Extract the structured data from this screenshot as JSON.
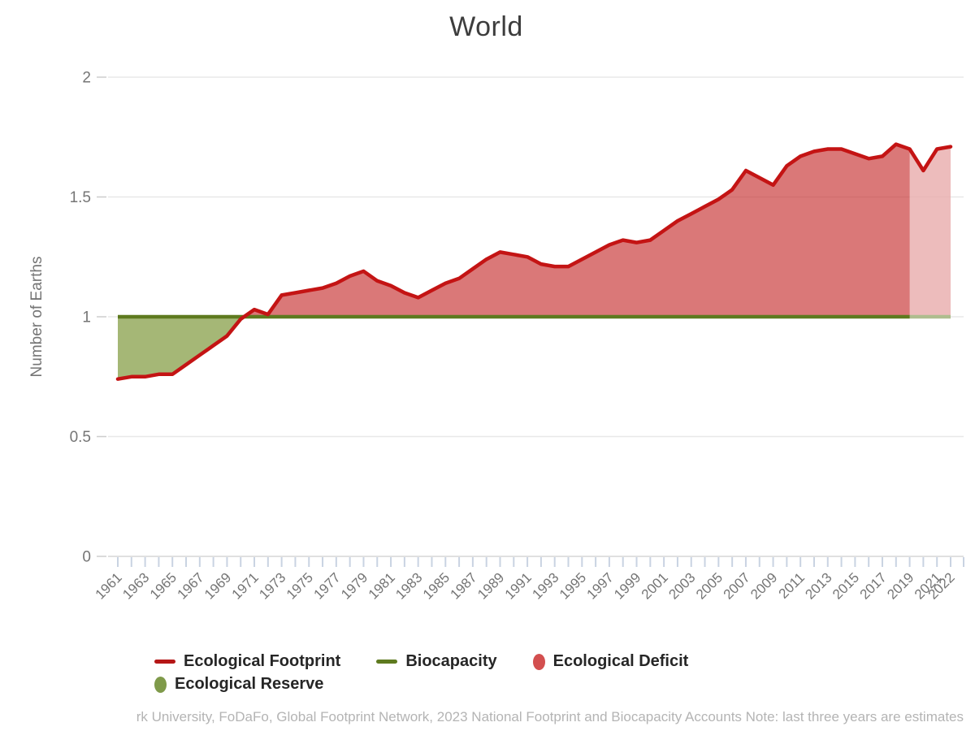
{
  "chart_data": {
    "type": "area",
    "title": "World",
    "ylabel": "Number of Earths",
    "ylim": [
      0,
      2
    ],
    "yticks": [
      0,
      0.5,
      1,
      1.5,
      2
    ],
    "ytick_labels": [
      "0",
      "0.5",
      "1",
      "1.5",
      "2"
    ],
    "x_tick_labels": [
      "1961",
      "1963",
      "1965",
      "1967",
      "1969",
      "1971",
      "1973",
      "1975",
      "1977",
      "1979",
      "1981",
      "1983",
      "1985",
      "1987",
      "1989",
      "1991",
      "1993",
      "1995",
      "1997",
      "1999",
      "2001",
      "2003",
      "2005",
      "2007",
      "2009",
      "2011",
      "2013",
      "2015",
      "2017",
      "2019",
      "2021",
      "2022"
    ],
    "grid": true,
    "legend_position": "bottom",
    "estimate_band_start_year": 2019,
    "years": [
      1961,
      1962,
      1963,
      1964,
      1965,
      1966,
      1967,
      1968,
      1969,
      1970,
      1971,
      1972,
      1973,
      1974,
      1975,
      1976,
      1977,
      1978,
      1979,
      1980,
      1981,
      1982,
      1983,
      1984,
      1985,
      1986,
      1987,
      1988,
      1989,
      1990,
      1991,
      1992,
      1993,
      1994,
      1995,
      1996,
      1997,
      1998,
      1999,
      2000,
      2001,
      2002,
      2003,
      2004,
      2005,
      2006,
      2007,
      2008,
      2009,
      2010,
      2011,
      2012,
      2013,
      2014,
      2015,
      2016,
      2017,
      2018,
      2019,
      2020,
      2021,
      2022
    ],
    "series": [
      {
        "name": "Ecological Footprint",
        "values": [
          0.74,
          0.75,
          0.75,
          0.76,
          0.76,
          0.8,
          0.84,
          0.88,
          0.92,
          0.99,
          1.03,
          1.01,
          1.09,
          1.1,
          1.11,
          1.12,
          1.14,
          1.17,
          1.19,
          1.15,
          1.13,
          1.1,
          1.08,
          1.11,
          1.14,
          1.16,
          1.2,
          1.24,
          1.27,
          1.26,
          1.25,
          1.22,
          1.21,
          1.21,
          1.24,
          1.27,
          1.3,
          1.32,
          1.31,
          1.32,
          1.36,
          1.4,
          1.43,
          1.46,
          1.49,
          1.53,
          1.61,
          1.58,
          1.55,
          1.63,
          1.67,
          1.69,
          1.7,
          1.7,
          1.68,
          1.66,
          1.67,
          1.72,
          1.7,
          1.61,
          1.7,
          1.71
        ]
      },
      {
        "name": "Biocapacity",
        "constant_value": 1
      }
    ]
  },
  "colors": {
    "footprint_line": "#c41414",
    "deficit_fill": "#c62f2f",
    "deficit_fill_opacity": 0.65,
    "reserve_fill": "#74912c",
    "reserve_fill_opacity": 0.65,
    "biocapacity_line": "#5e7a1f",
    "estimate_overlay": "#ffffff",
    "estimate_overlay_opacity": 0.5,
    "gridline": "#e8e8e8",
    "axis_line": "#d5d5d5",
    "tick": "#c9d3e2",
    "y_tick_dash": "#cdcdcd",
    "axis_text": "#757575",
    "title_text": "#3d3d3d",
    "legend_text": "#262626",
    "attribution_text": "#b4b4b4"
  },
  "legend": {
    "items": [
      {
        "label": "Ecological Footprint",
        "marker": "line",
        "color": "#b51717"
      },
      {
        "label": "Biocapacity",
        "marker": "line",
        "color": "#5e7a1f"
      },
      {
        "label": "Ecological Deficit",
        "marker": "ellipse",
        "color": "#d34f4f"
      },
      {
        "label": "Ecological Reserve",
        "marker": "ellipse",
        "color": "#7f9a4a"
      }
    ]
  },
  "attribution": "rk University, FoDaFo, Global Footprint Network, 2023 National Footprint and Biocapacity Accounts Note: last three years are estimates"
}
